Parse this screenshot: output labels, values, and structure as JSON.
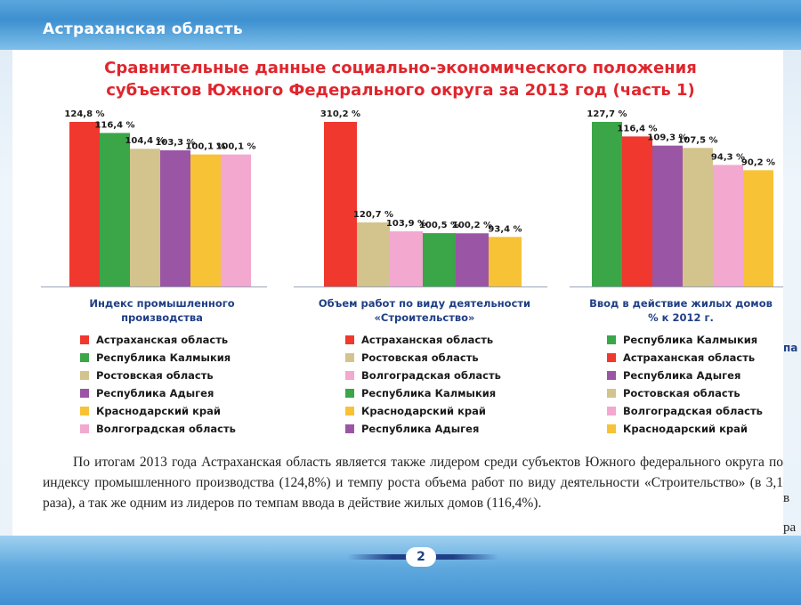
{
  "header": {
    "title": "Астраханская область"
  },
  "title": {
    "line1": "Сравнительные данные социально-экономического положения",
    "line2": "субъектов Южного Федерального округа за 2013 год (часть 1)"
  },
  "colors": {
    "red": "#f0382e",
    "green": "#3aa648",
    "khaki": "#d2c48c",
    "purple": "#9a56a4",
    "orange": "#f7c235",
    "pink": "#f2a8cf"
  },
  "chart_data": [
    {
      "type": "bar",
      "caption_line1": "Индекс промышленного",
      "caption_line2": "производства",
      "ylim": [
        0,
        124.8
      ],
      "categories": [
        "Астраханская область",
        "Республика Калмыкия",
        "Ростовская область",
        "Республика Адыгея",
        "Краснодарский край",
        "Волгоградская область"
      ],
      "values": [
        124.8,
        116.4,
        104.4,
        103.3,
        100.1,
        100.1
      ],
      "labels": [
        "124,8 %",
        "116,4 %",
        "104,4 %",
        "103,3 %",
        "100,1 %",
        "100,1 %"
      ],
      "colors": [
        "#f0382e",
        "#3aa648",
        "#d2c48c",
        "#9a56a4",
        "#f7c235",
        "#f2a8cf"
      ],
      "legend": [
        "Астраханская область",
        "Республика Калмыкия",
        "Ростовская область",
        "Республика Адыгея",
        "Краснодарский край",
        "Волгоградская область"
      ],
      "legend_colors": [
        "#f0382e",
        "#3aa648",
        "#d2c48c",
        "#9a56a4",
        "#f7c235",
        "#f2a8cf"
      ]
    },
    {
      "type": "bar",
      "caption_line1": "Объем работ по виду деятельности",
      "caption_line2": "«Строительство»",
      "ylim": [
        0,
        310.2
      ],
      "categories": [
        "Астраханская область",
        "Ростовская область",
        "Волгоградская область",
        "Республика Калмыкия",
        "Республика Адыгея",
        "Краснодарский край"
      ],
      "values": [
        310.2,
        120.7,
        103.9,
        100.5,
        100.2,
        93.4
      ],
      "labels": [
        "310,2 %",
        "120,7 %",
        "103,9 %",
        "100,5 %",
        "100,2 %",
        "93,4 %"
      ],
      "colors": [
        "#f0382e",
        "#d2c48c",
        "#f2a8cf",
        "#3aa648",
        "#9a56a4",
        "#f7c235"
      ],
      "legend": [
        "Астраханская область",
        "Ростовская область",
        "Волгоградская область",
        "Республика Калмыкия",
        "Краснодарский край",
        "Республика Адыгея"
      ],
      "legend_colors": [
        "#f0382e",
        "#d2c48c",
        "#f2a8cf",
        "#3aa648",
        "#f7c235",
        "#9a56a4"
      ]
    },
    {
      "type": "bar",
      "caption_line1": "Ввод в действие жилых домов",
      "caption_line2": "% к 2012 г.",
      "ylim": [
        0,
        127.7
      ],
      "categories": [
        "Республика Калмыкия",
        "Астраханская область",
        "Республика Адыгея",
        "Ростовская область",
        "Волгоградская область",
        "Краснодарский край"
      ],
      "values": [
        127.7,
        116.4,
        109.3,
        107.5,
        94.3,
        90.2
      ],
      "labels": [
        "127,7 %",
        "116,4 %",
        "109,3 %",
        "107,5 %",
        "94,3 %",
        "90,2 %"
      ],
      "colors": [
        "#3aa648",
        "#f0382e",
        "#9a56a4",
        "#d2c48c",
        "#f2a8cf",
        "#f7c235"
      ],
      "legend": [
        "Республика Калмыкия",
        "Астраханская область",
        "Республика Адыгея",
        "Ростовская область",
        "Волгоградская область",
        "Краснодарский край"
      ],
      "legend_colors": [
        "#3aa648",
        "#f0382e",
        "#9a56a4",
        "#d2c48c",
        "#f2a8cf",
        "#f7c235"
      ]
    }
  ],
  "body_text": "По итогам 2013 года Астраханская область является также лидером среди субъектов Южного федерального округа по индексу промышленного производства (124,8%) и темпу роста объема работ по виду деятельности «Строительство» (в 3,1 раза), а так же одним из лидеров по темпам ввода в действие жилых домов (116,4%).",
  "right_fragments": [
    "па",
    "в",
    "ра"
  ],
  "footer": {
    "page_number": "2"
  }
}
